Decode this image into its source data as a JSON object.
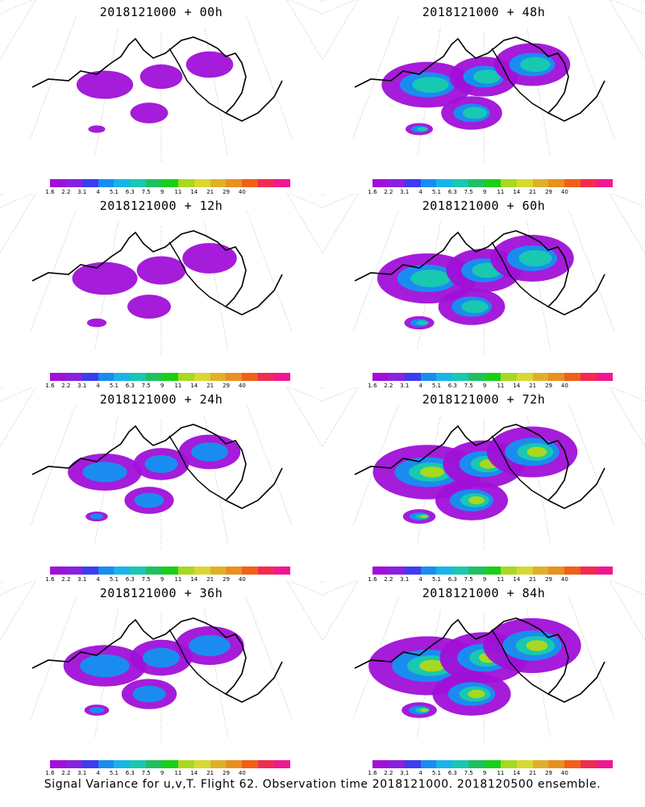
{
  "panels": [
    {
      "title": "2018121000 + 00h",
      "intensity": 0.15
    },
    {
      "title": "2018121000 + 48h",
      "intensity": 0.55
    },
    {
      "title": "2018121000 + 12h",
      "intensity": 0.25
    },
    {
      "title": "2018121000 + 60h",
      "intensity": 0.65
    },
    {
      "title": "2018121000 + 24h",
      "intensity": 0.35
    },
    {
      "title": "2018121000 + 72h",
      "intensity": 0.75
    },
    {
      "title": "2018121000 + 36h",
      "intensity": 0.45
    },
    {
      "title": "2018121000 + 84h",
      "intensity": 0.85
    }
  ],
  "colorbar": {
    "colors": [
      "#a010d8",
      "#8a20e0",
      "#3c3cf0",
      "#1a8cf0",
      "#18b4e8",
      "#18c8b0",
      "#20c060",
      "#18d018",
      "#a8d820",
      "#d8d830",
      "#e0b028",
      "#e89020",
      "#f06018",
      "#f02c50",
      "#f01890"
    ],
    "labels": [
      "1.6",
      "2.2",
      "3.1",
      "4",
      "5.1",
      "6.3",
      "7.5",
      "9",
      "11",
      "14",
      "21",
      "29",
      "40"
    ]
  },
  "caption": "Signal Variance for u,v,T. Flight 62. Observation time 2018121000. 2018120500 ensemble."
}
